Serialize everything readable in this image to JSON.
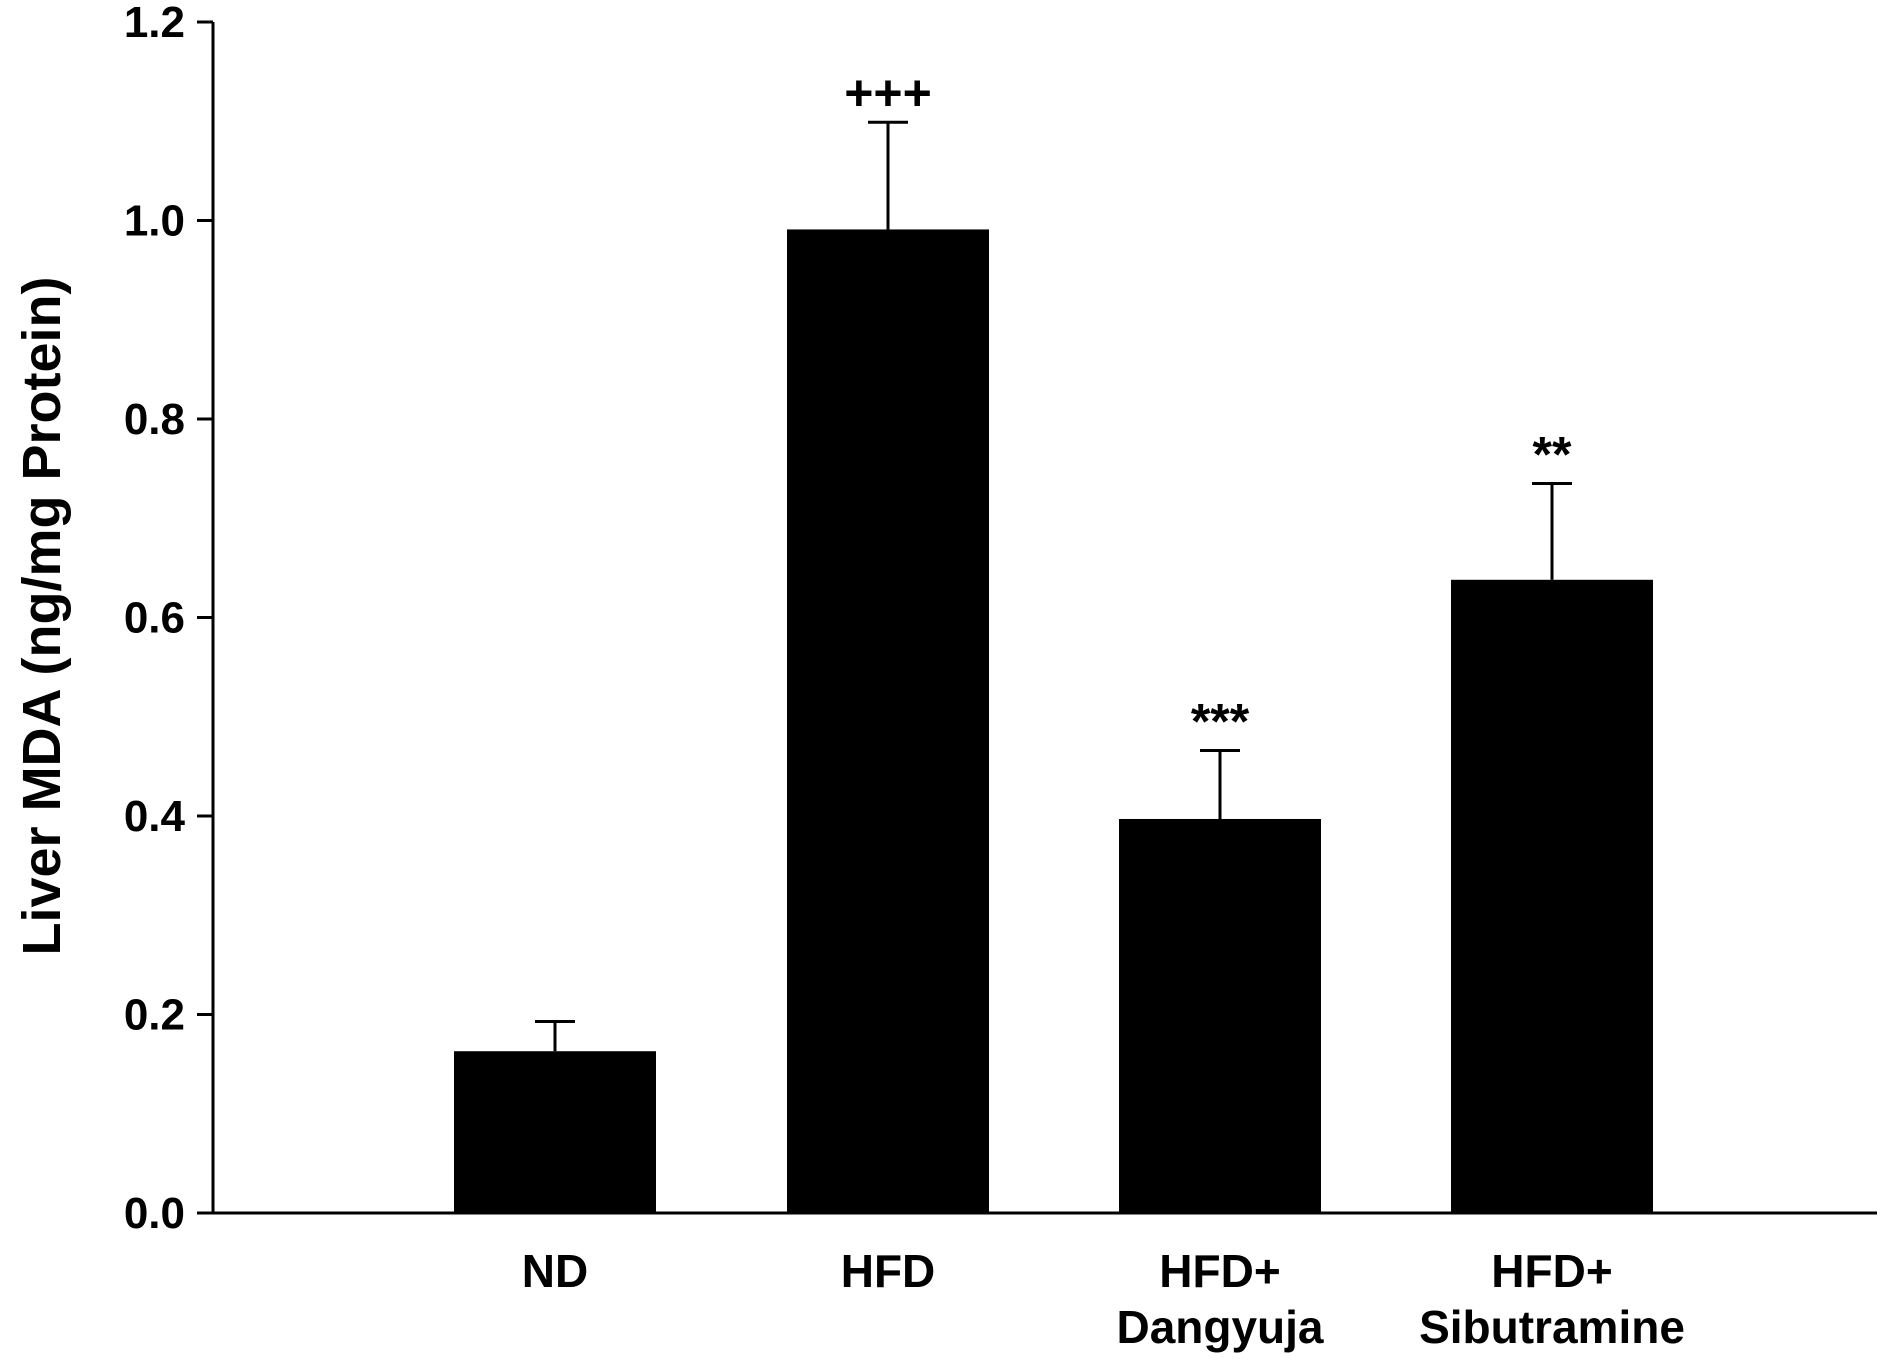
{
  "chart_data": {
    "type": "bar",
    "title": "",
    "xlabel": "",
    "ylabel": "Liver MDA (ng/mg Protein)",
    "ylim": [
      0,
      1.2
    ],
    "yticks": [
      "0.0",
      "0.2",
      "0.4",
      "0.6",
      "0.8",
      "1.0",
      "1.2"
    ],
    "grid": false,
    "legend": "none",
    "categories": [
      [
        "ND"
      ],
      [
        "HFD"
      ],
      [
        "HFD+",
        "Dangyuja"
      ],
      [
        "HFD+",
        "Sibutramine"
      ]
    ],
    "values": [
      0.163,
      0.991,
      0.397,
      0.638
    ],
    "errors": [
      0.03,
      0.108,
      0.069,
      0.097
    ],
    "annotations": [
      "",
      "+++",
      "***",
      "**"
    ],
    "bar_color": "#000000"
  }
}
